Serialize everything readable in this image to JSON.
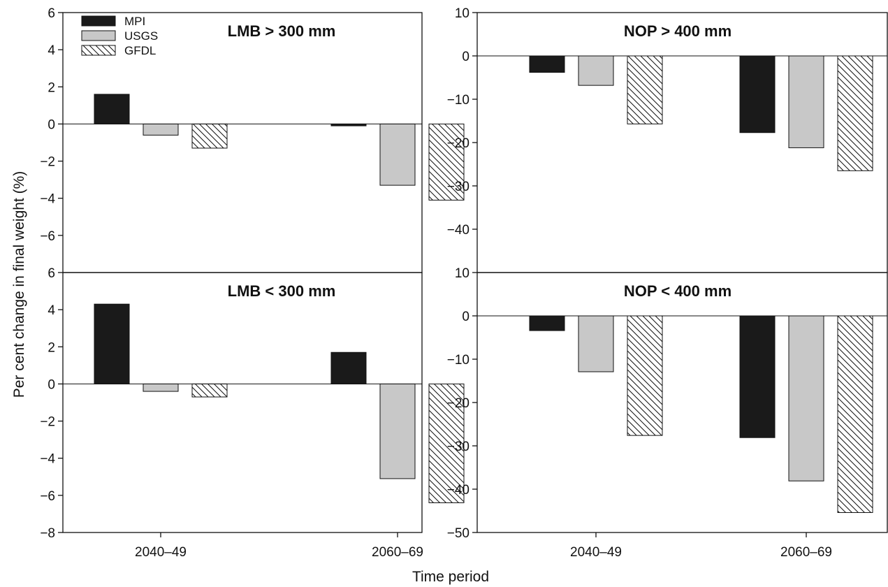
{
  "figure": {
    "ylabel": "Per cent change in final weight (%)",
    "xlabel": "Time period",
    "legend": [
      "MPI",
      "USGS",
      "GFDL"
    ]
  },
  "colors": {
    "MPI": "#1a1a1a",
    "USGS": "#c8c8c8",
    "GFDL": "#ffffff",
    "axis": "#111111"
  },
  "chart_data": [
    {
      "type": "bar",
      "title": "LMB > 300 mm",
      "categories": [
        "2040–49",
        "2060–69"
      ],
      "series": [
        {
          "name": "MPI",
          "values": [
            1.6,
            -0.1
          ]
        },
        {
          "name": "USGS",
          "values": [
            -0.6,
            -3.3
          ]
        },
        {
          "name": "GFDL",
          "values": [
            -1.3,
            -4.1
          ]
        }
      ],
      "ylim": [
        -8,
        6
      ],
      "yticks": [
        "6",
        "4",
        "2",
        "0",
        "−2",
        "−4",
        "−6"
      ],
      "legend": "top-left",
      "grid": false
    },
    {
      "type": "bar",
      "title": "LMB < 300 mm",
      "categories": [
        "2040–49",
        "2060–69"
      ],
      "series": [
        {
          "name": "MPI",
          "values": [
            4.3,
            1.7
          ]
        },
        {
          "name": "USGS",
          "values": [
            -0.4,
            -5.1
          ]
        },
        {
          "name": "GFDL",
          "values": [
            -0.7,
            -6.4
          ]
        }
      ],
      "ylim": [
        -8,
        6
      ],
      "yticks": [
        "6",
        "4",
        "2",
        "0",
        "−2",
        "−4",
        "−6",
        "−8"
      ],
      "grid": false
    },
    {
      "type": "bar",
      "title": "NOP > 400 mm",
      "categories": [
        "2040–49",
        "2060–69"
      ],
      "series": [
        {
          "name": "MPI",
          "values": [
            -3.8,
            -17.7
          ]
        },
        {
          "name": "USGS",
          "values": [
            -6.8,
            -21.2
          ]
        },
        {
          "name": "GFDL",
          "values": [
            -15.7,
            -26.5
          ]
        }
      ],
      "ylim": [
        -50,
        10
      ],
      "yticks": [
        "10",
        "0",
        "−10",
        "−20",
        "−30",
        "−40"
      ],
      "grid": false
    },
    {
      "type": "bar",
      "title": "NOP < 400 mm",
      "categories": [
        "2040–49",
        "2060–69"
      ],
      "series": [
        {
          "name": "MPI",
          "values": [
            -3.4,
            -28.1
          ]
        },
        {
          "name": "USGS",
          "values": [
            -12.9,
            -38.1
          ]
        },
        {
          "name": "GFDL",
          "values": [
            -27.6,
            -45.4
          ]
        }
      ],
      "ylim": [
        -50,
        10
      ],
      "yticks": [
        "10",
        "0",
        "−10",
        "−20",
        "−30",
        "−40",
        "−50"
      ],
      "grid": false
    }
  ]
}
